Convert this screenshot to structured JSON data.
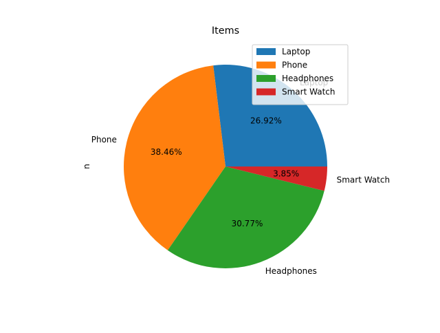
{
  "chart_data": {
    "type": "pie",
    "title": "Items",
    "ylabel": "n",
    "categories": [
      "Laptop",
      "Phone",
      "Headphones",
      "Smart Watch"
    ],
    "values": [
      7,
      10,
      8,
      1
    ],
    "percent_labels": [
      "26.92%",
      "38.46%",
      "30.77%",
      "3.85%"
    ],
    "colors": [
      "#1f77b4",
      "#ff7f0e",
      "#2ca02c",
      "#d62728"
    ],
    "start_angle_deg": 0,
    "direction": "counterclockwise",
    "legend": {
      "position": "top-right",
      "entries": [
        "Laptop",
        "Phone",
        "Headphones",
        "Smart Watch"
      ]
    }
  }
}
